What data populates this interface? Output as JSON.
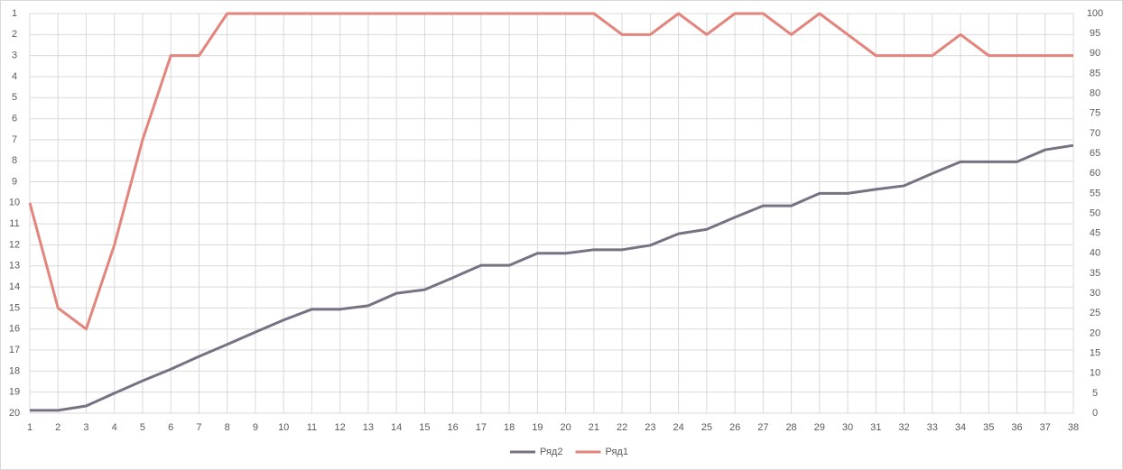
{
  "chart_data": {
    "type": "line",
    "categories": [
      "1",
      "2",
      "3",
      "4",
      "5",
      "6",
      "7",
      "8",
      "9",
      "10",
      "11",
      "12",
      "13",
      "14",
      "15",
      "16",
      "17",
      "18",
      "19",
      "20",
      "21",
      "22",
      "23",
      "24",
      "25",
      "26",
      "27",
      "28",
      "29",
      "30",
      "31",
      "32",
      "33",
      "34",
      "35",
      "36",
      "37",
      "38"
    ],
    "series": [
      {
        "name": "Ряд2",
        "color": "#787184",
        "axis": "y2",
        "values": [
          0.7,
          0.7,
          1.8,
          5,
          8.1,
          11,
          14.2,
          17.2,
          20.3,
          23.3,
          26,
          26,
          26.9,
          30,
          30.9,
          33.9,
          37,
          37,
          40,
          40,
          40.9,
          40.9,
          42,
          44.9,
          46,
          49,
          51.9,
          51.9,
          55,
          55,
          56,
          56.9,
          60,
          62.9,
          62.9,
          62.9,
          65.9,
          67
        ]
      },
      {
        "name": "Ряд1",
        "color": "#e3857d",
        "axis": "y",
        "values": [
          10,
          15,
          16,
          12,
          7,
          3,
          3,
          1,
          1,
          1,
          1,
          1,
          1,
          1,
          1,
          1,
          1,
          1,
          1,
          1,
          1,
          2,
          2,
          1,
          2,
          1,
          1,
          2,
          1,
          2,
          3,
          3,
          3,
          2,
          3,
          3,
          3,
          3
        ]
      }
    ],
    "ylim": [
      20,
      1
    ],
    "yticks": [
      1,
      2,
      3,
      4,
      5,
      6,
      7,
      8,
      9,
      10,
      11,
      12,
      13,
      14,
      15,
      16,
      17,
      18,
      19,
      20
    ],
    "y2lim": [
      0,
      100
    ],
    "y2ticks": [
      0,
      5,
      10,
      15,
      20,
      25,
      30,
      35,
      40,
      45,
      50,
      55,
      60,
      65,
      70,
      75,
      80,
      85,
      90,
      95,
      100
    ],
    "grid": true,
    "legend": "bottom"
  }
}
